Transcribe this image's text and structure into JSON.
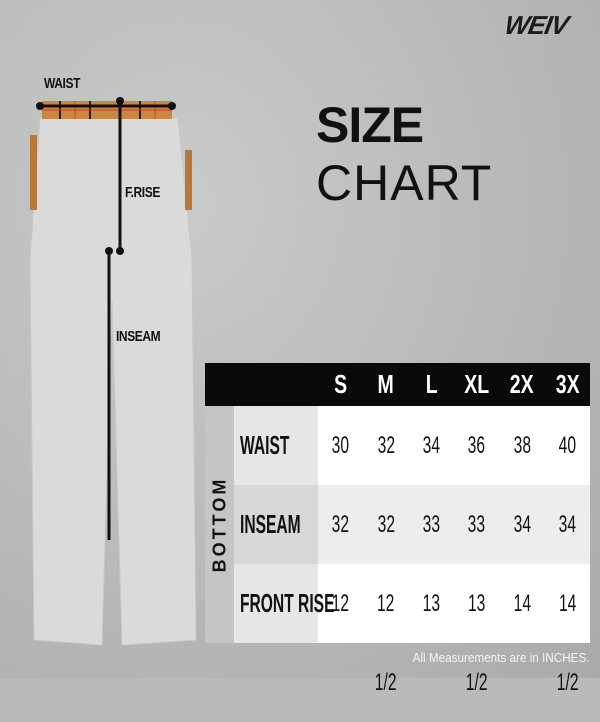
{
  "brand": {
    "logo": "WEIV"
  },
  "title": {
    "bold": "SIZE",
    "light": "CHART"
  },
  "diagram": {
    "labels": {
      "waist": "WAIST",
      "front_rise": "F.RISE",
      "inseam": "INSEAM"
    }
  },
  "table": {
    "section": "BOTTOM",
    "sizes": [
      "S",
      "M",
      "L",
      "XL",
      "2X",
      "3X"
    ],
    "rows": [
      {
        "label": "WAIST",
        "values": [
          "30",
          "32",
          "34",
          "36",
          "38",
          "40"
        ]
      },
      {
        "label": "INSEAM",
        "values": [
          "32",
          "32",
          "33",
          "33",
          "34",
          "34"
        ]
      },
      {
        "label": "FRONT RISE",
        "values": [
          "12",
          "12 1/2",
          "13",
          "13 1/2",
          "14",
          "14 1/2"
        ]
      }
    ]
  },
  "note": "All Measurements are in INCHES."
}
